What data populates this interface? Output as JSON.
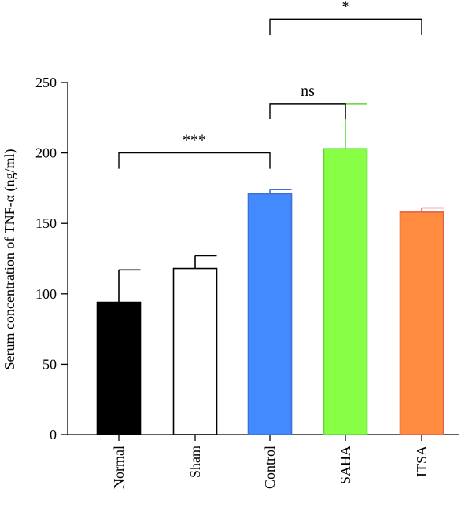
{
  "chart_data": {
    "type": "bar",
    "title": "",
    "xlabel": "",
    "ylabel": "Serum concentration of TNF-α (ng/ml)",
    "ylim": [
      0,
      250
    ],
    "yticks": [
      0,
      50,
      100,
      150,
      200,
      250
    ],
    "categories": [
      "Normal",
      "Sham",
      "Control",
      "SAHA",
      "ITSA"
    ],
    "values": [
      94,
      118,
      171,
      203,
      158
    ],
    "errors": [
      23,
      9,
      3,
      32,
      3
    ],
    "fill_colors": [
      "#000000",
      "#ffffff",
      "#448aff",
      "#88ff44",
      "#ff8c3f"
    ],
    "stroke_colors": [
      "#000000",
      "#000000",
      "#3f6ed6",
      "#5fd63a",
      "#e3634a"
    ],
    "significance": [
      {
        "from": "Normal",
        "to": "Control",
        "label": "***",
        "y": 200
      },
      {
        "from": "Control",
        "to": "SAHA",
        "label": "ns",
        "y": 235
      },
      {
        "from": "Control",
        "to": "ITSA",
        "label": "*",
        "y": 295
      }
    ]
  }
}
